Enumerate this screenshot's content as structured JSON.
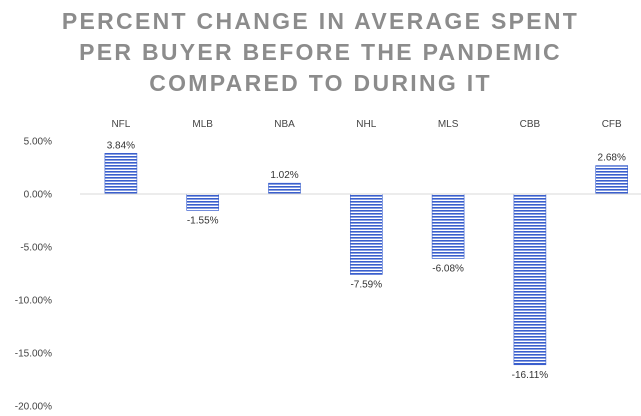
{
  "chart_data": {
    "type": "bar",
    "title_lines": [
      "PERCENT CHANGE IN AVERAGE SPENT",
      "PER BUYER BEFORE THE PANDEMIC",
      "COMPARED TO DURING IT"
    ],
    "categories": [
      "NFL",
      "MLB",
      "NBA",
      "NHL",
      "MLS",
      "CBB",
      "CFB"
    ],
    "values": [
      3.84,
      -1.55,
      1.02,
      -7.59,
      -6.08,
      -16.11,
      2.68
    ],
    "data_labels": [
      "3.84%",
      "-1.55%",
      "1.02%",
      "-7.59%",
      "-6.08%",
      "-16.11%",
      "2.68%"
    ],
    "y_ticks": [
      5,
      0,
      -5,
      -10,
      -15,
      -20
    ],
    "y_tick_labels": [
      "5.00%",
      "0.00%",
      "-5.00%",
      "-10.00%",
      "-15.00%",
      "-20.00%"
    ],
    "ylim": [
      -20,
      5
    ],
    "category_axis_position": "top",
    "grid": false,
    "legend": "none",
    "colors": {
      "bar_light": "#ffffff",
      "bar_dark": "#3a5fcd",
      "title": "#8c8c8c",
      "axis": "#d9d9d9"
    }
  }
}
